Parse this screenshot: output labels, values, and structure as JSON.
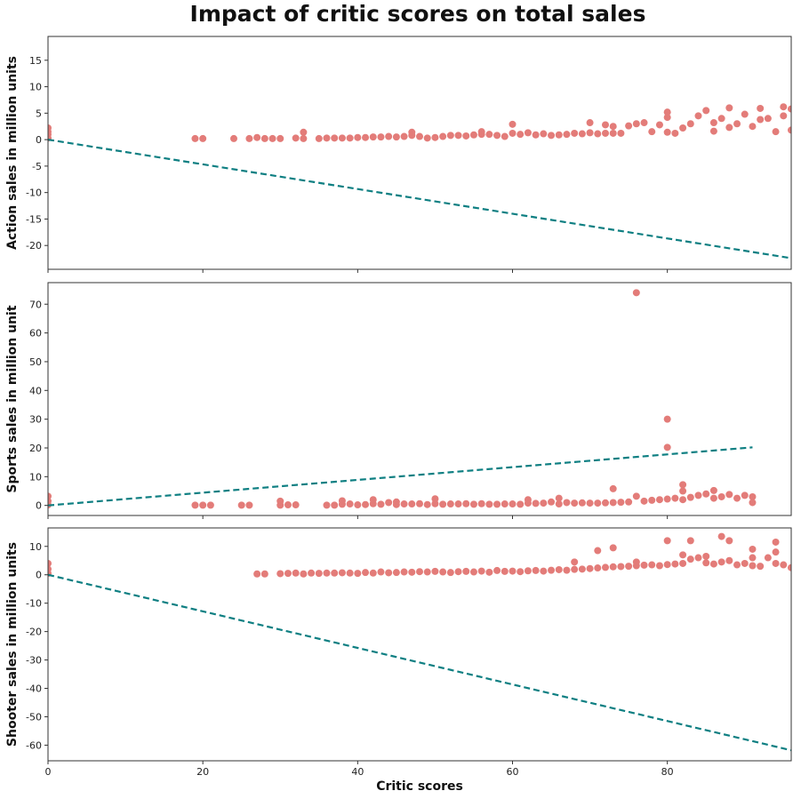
{
  "figure": {
    "title": "Impact of critic scores on total sales"
  },
  "colors": {
    "points": "#e37c79",
    "trend": "#0e7f82",
    "axes": "#333333",
    "background": "#ffffff"
  },
  "chart_data": [
    {
      "type": "scatter",
      "xlabel": "",
      "ylabel": "Action sales in million units",
      "xlim": [
        0,
        96
      ],
      "ylim": [
        -24.5,
        19.5
      ],
      "xticks": [
        0,
        20,
        40,
        60,
        80
      ],
      "yticks": [
        -20,
        -15,
        -10,
        -5,
        0,
        5,
        10,
        15
      ],
      "show_xticklabels": false,
      "grid": false,
      "trend_line": {
        "x": [
          0,
          96
        ],
        "y": [
          0,
          -22.4
        ],
        "style": "dashed"
      },
      "x": [
        0,
        0,
        0,
        0,
        19,
        20,
        24,
        26,
        27,
        28,
        29,
        30,
        32,
        33,
        33,
        35,
        36,
        37,
        38,
        39,
        40,
        41,
        42,
        43,
        44,
        45,
        46,
        47,
        47,
        48,
        49,
        50,
        51,
        52,
        53,
        54,
        55,
        56,
        56,
        57,
        58,
        59,
        60,
        60,
        61,
        62,
        63,
        64,
        65,
        66,
        67,
        68,
        69,
        70,
        70,
        71,
        72,
        72,
        73,
        73,
        74,
        75,
        76,
        77,
        78,
        79,
        80,
        80,
        80,
        81,
        82,
        83,
        84,
        85,
        86,
        86,
        87,
        88,
        88,
        89,
        90,
        91,
        92,
        92,
        93,
        94,
        95,
        95,
        96,
        96
      ],
      "y": [
        0.3,
        1.0,
        1.5,
        2.2,
        0.2,
        0.2,
        0.2,
        0.2,
        0.4,
        0.2,
        0.2,
        0.2,
        0.3,
        0.2,
        1.4,
        0.2,
        0.3,
        0.3,
        0.3,
        0.3,
        0.4,
        0.4,
        0.5,
        0.5,
        0.6,
        0.5,
        0.6,
        0.8,
        1.4,
        0.6,
        0.3,
        0.4,
        0.6,
        0.8,
        0.8,
        0.7,
        0.9,
        1.0,
        1.5,
        1.0,
        0.8,
        0.6,
        1.2,
        2.9,
        1.0,
        1.3,
        0.9,
        1.1,
        0.8,
        0.9,
        1.0,
        1.2,
        1.1,
        1.3,
        3.2,
        1.1,
        1.2,
        2.8,
        1.2,
        2.5,
        1.2,
        2.6,
        3.0,
        3.2,
        1.5,
        2.8,
        1.4,
        4.2,
        5.2,
        1.2,
        2.2,
        3.0,
        4.5,
        5.5,
        1.6,
        3.2,
        4.0,
        2.3,
        6.0,
        3.0,
        4.8,
        2.5,
        3.8,
        5.9,
        4.0,
        1.5,
        4.5,
        6.2,
        1.8,
        5.8
      ]
    },
    {
      "type": "scatter",
      "xlabel": "",
      "ylabel": "Sports sales in million unit",
      "xlim": [
        0,
        96
      ],
      "ylim": [
        -3.5,
        77.5
      ],
      "xticks": [
        0,
        20,
        40,
        60,
        80
      ],
      "yticks": [
        0,
        10,
        20,
        30,
        40,
        50,
        60,
        70
      ],
      "show_xticklabels": false,
      "grid": false,
      "trend_line": {
        "x": [
          0,
          91
        ],
        "y": [
          0,
          20.2
        ],
        "style": "dashed"
      },
      "x": [
        0,
        0,
        0,
        19,
        20,
        21,
        25,
        26,
        30,
        30,
        31,
        32,
        36,
        37,
        38,
        38,
        39,
        40,
        41,
        42,
        42,
        43,
        44,
        45,
        45,
        46,
        47,
        48,
        49,
        50,
        50,
        51,
        52,
        53,
        54,
        55,
        56,
        57,
        58,
        59,
        60,
        61,
        62,
        62,
        63,
        64,
        65,
        66,
        66,
        67,
        68,
        69,
        70,
        71,
        72,
        73,
        73,
        74,
        75,
        76,
        76,
        77,
        78,
        79,
        80,
        80,
        80,
        81,
        82,
        82,
        82,
        83,
        84,
        85,
        86,
        86,
        87,
        88,
        89,
        90,
        91,
        91
      ],
      "y": [
        0.2,
        1.5,
        3.2,
        0.1,
        0.1,
        0.1,
        0.1,
        0.1,
        0.1,
        1.5,
        0.2,
        0.2,
        0.1,
        0.1,
        0.4,
        1.6,
        0.5,
        0.2,
        0.3,
        0.6,
        2.0,
        0.4,
        1.0,
        0.3,
        1.2,
        0.5,
        0.5,
        0.6,
        0.3,
        0.6,
        2.3,
        0.4,
        0.5,
        0.5,
        0.6,
        0.4,
        0.6,
        0.4,
        0.4,
        0.5,
        0.5,
        0.4,
        0.8,
        2.0,
        0.7,
        0.8,
        1.2,
        0.5,
        2.5,
        1.0,
        0.8,
        0.9,
        0.8,
        0.8,
        0.9,
        1.0,
        5.8,
        1.1,
        1.2,
        3.2,
        74.0,
        1.5,
        1.8,
        2.0,
        2.2,
        20.2,
        30.0,
        2.5,
        2.0,
        5.0,
        7.2,
        2.8,
        3.5,
        4.0,
        2.5,
        5.2,
        3.0,
        3.8,
        2.5,
        3.5,
        1.0,
        3.0
      ]
    },
    {
      "type": "scatter",
      "xlabel": "Critic scores",
      "ylabel": "Shooter sales in million units",
      "xlim": [
        0,
        96
      ],
      "ylim": [
        -65.5,
        16.5
      ],
      "xticks": [
        0,
        20,
        40,
        60,
        80
      ],
      "yticks": [
        -60,
        -50,
        -40,
        -30,
        -20,
        -10,
        0,
        10
      ],
      "show_xticklabels": true,
      "grid": false,
      "trend_line": {
        "x": [
          0,
          96
        ],
        "y": [
          0,
          -61.8
        ],
        "style": "dashed"
      },
      "x": [
        0,
        0,
        0,
        27,
        28,
        30,
        31,
        32,
        33,
        34,
        35,
        36,
        37,
        38,
        39,
        40,
        41,
        42,
        43,
        44,
        45,
        46,
        47,
        48,
        49,
        50,
        51,
        52,
        53,
        54,
        55,
        56,
        57,
        58,
        59,
        60,
        61,
        62,
        63,
        64,
        65,
        66,
        67,
        68,
        68,
        69,
        70,
        71,
        71,
        72,
        73,
        73,
        74,
        75,
        76,
        76,
        77,
        78,
        79,
        80,
        80,
        81,
        82,
        82,
        83,
        83,
        84,
        85,
        85,
        86,
        87,
        87,
        88,
        88,
        89,
        90,
        91,
        91,
        91,
        92,
        93,
        94,
        94,
        94,
        95,
        96
      ],
      "y": [
        0.5,
        2.0,
        4.0,
        0.3,
        0.3,
        0.4,
        0.5,
        0.6,
        0.3,
        0.6,
        0.5,
        0.6,
        0.6,
        0.7,
        0.6,
        0.5,
        0.8,
        0.6,
        1.0,
        0.7,
        0.8,
        1.0,
        0.9,
        1.1,
        1.0,
        1.2,
        1.0,
        0.8,
        1.1,
        1.2,
        1.0,
        1.3,
        0.9,
        1.5,
        1.2,
        1.3,
        1.1,
        1.4,
        1.5,
        1.3,
        1.6,
        1.8,
        1.6,
        1.9,
        4.5,
        2.0,
        2.2,
        2.4,
        8.5,
        2.6,
        2.8,
        9.5,
        2.9,
        3.0,
        3.2,
        4.5,
        3.4,
        3.5,
        3.2,
        3.6,
        12.0,
        3.8,
        4.0,
        7.0,
        5.5,
        12.0,
        6.0,
        4.2,
        6.5,
        3.8,
        4.5,
        13.5,
        5.0,
        12.0,
        3.5,
        4.0,
        3.2,
        6.0,
        9.0,
        3.0,
        6.0,
        4.0,
        8.0,
        11.5,
        3.5,
        2.5
      ]
    }
  ]
}
